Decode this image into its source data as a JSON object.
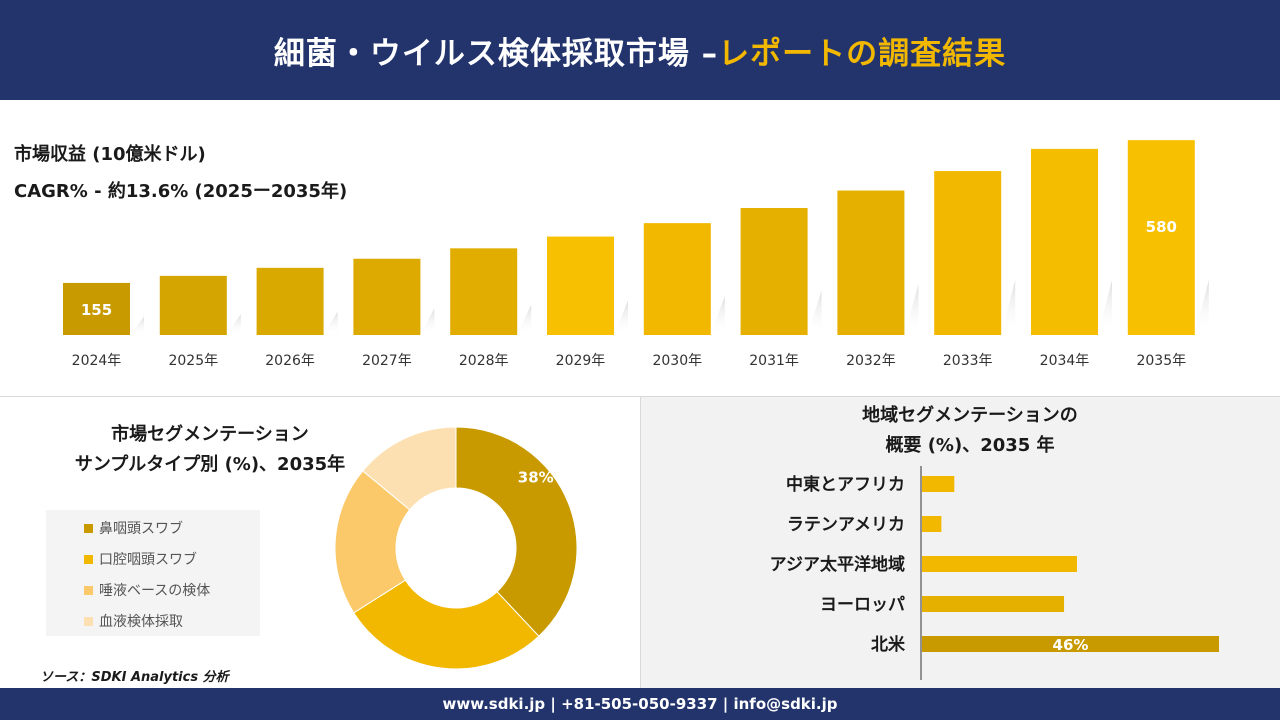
{
  "header": {
    "title_main": "細菌・ウイルス検体採取市場 –",
    "title_accent": "レポートの調査結果"
  },
  "metrics": {
    "revenue_label": "市場収益 (10億米ドル)",
    "cagr_label": "CAGR% - 約13.6% (2025ー2035年)"
  },
  "colors": {
    "header_bg": "#23346c",
    "accent": "#f2b800",
    "bar_gradient": [
      "#c89a00",
      "#d9a900",
      "#e0ad00",
      "#e6b000",
      "#f2b800",
      "#f7c000"
    ]
  },
  "chart_data": [
    {
      "type": "bar",
      "categories": [
        "2024年",
        "2025年",
        "2026年",
        "2027年",
        "2028年",
        "2029年",
        "2030年",
        "2031年",
        "2032年",
        "2033年",
        "2034年",
        "2035年"
      ],
      "values": [
        155,
        176,
        200,
        227,
        258,
        293,
        333,
        378,
        430,
        488,
        554,
        580
      ],
      "data_labels": [
        {
          "index": 0,
          "text": "155"
        },
        {
          "index": 11,
          "text": "580"
        }
      ],
      "ylim": [
        0,
        640
      ],
      "grid": false,
      "colors": [
        "#c89a00",
        "#d4a400",
        "#d9a900",
        "#dcaa00",
        "#e0ad00",
        "#f7c000",
        "#f2b800",
        "#e6b000",
        "#e6b000",
        "#f2b800",
        "#f5bd00",
        "#f7c000"
      ]
    },
    {
      "type": "pie",
      "title": "市場セグメンテーション\nサンプルタイプ別 (%)、2035年",
      "title_lines": [
        "市場セグメンテーション",
        "サンプルタイプ別 (%)、2035年"
      ],
      "categories": [
        "鼻咽頭スワブ",
        "口腔咽頭スワブ",
        "唾液ベースの検体",
        "血液検体採取"
      ],
      "values": [
        38,
        28,
        20,
        14
      ],
      "data_labels": [
        {
          "index": 0,
          "text": "38%"
        }
      ],
      "colors": [
        "#c89a00",
        "#f2b800",
        "#fbc96a",
        "#fde0b2"
      ],
      "donut": true
    },
    {
      "type": "bar",
      "orientation": "horizontal",
      "title_lines": [
        "地域セグメンテーションの",
        "概要 (%)、2035 年"
      ],
      "categories": [
        "中東とアフリカ",
        "ラテンアメリカ",
        "アジア太平洋地域",
        "ヨーロッパ",
        "北米"
      ],
      "values": [
        5,
        3,
        24,
        22,
        46
      ],
      "data_labels": [
        {
          "index": 4,
          "text": "46%"
        }
      ],
      "xlim": [
        0,
        46
      ],
      "colors": [
        "#f2b800",
        "#f2b800",
        "#f2b800",
        "#e6b000",
        "#c89a00"
      ]
    }
  ],
  "source": "ソース：SDKI Analytics 分析",
  "footer": {
    "contact": "www.sdki.jp | +81-505-050-9337 | info@sdki.jp"
  }
}
